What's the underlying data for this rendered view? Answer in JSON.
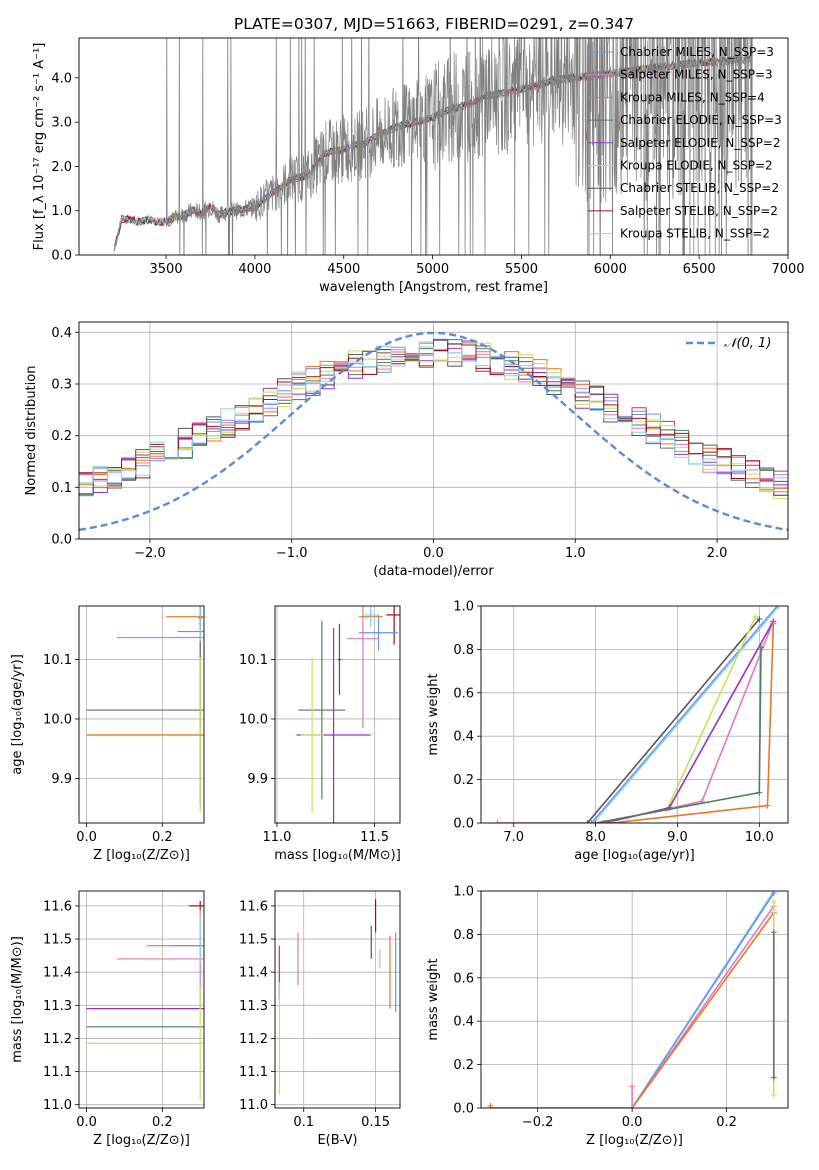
{
  "figure": {
    "title": "PLATE=0307, MJD=51663, FIBERID=0291, z=0.347"
  },
  "colors": {
    "chabrier_miles": "#6495ed",
    "salpeter_miles": "#e377c2",
    "kroupa_miles": "#e8762b",
    "chabrier_elodie": "#4a7f5e",
    "salpeter_elodie": "#9b30c9",
    "kroupa_elodie": "#c8e05a",
    "chabrier_stelib": "#555555",
    "salpeter_stelib": "#a01010",
    "kroupa_stelib": "#90d0e8",
    "data": "#808080",
    "gaussian": "#5b8bd6"
  },
  "chart_data": [
    {
      "id": "spectrum",
      "type": "line",
      "xlabel": "wavelength [Angstrom, rest frame]",
      "ylabel": "Flux [f_λ 10⁻¹⁷ erg cm⁻² s⁻¹ A⁻¹]",
      "xlim": [
        3010,
        7000
      ],
      "ylim": [
        0,
        4.9
      ],
      "xticks": [
        3500,
        4000,
        4500,
        5000,
        5500,
        6000,
        6500,
        7000
      ],
      "yticks": [
        0,
        1,
        2,
        3,
        4
      ],
      "grid": false,
      "legend_position": "right",
      "data_series": {
        "name": "",
        "x": [
          3200,
          3250,
          3300,
          3350,
          3400,
          3450,
          3500,
          3550,
          3600,
          3650,
          3700,
          3750,
          3800,
          3850,
          3900,
          3950,
          4000,
          4100,
          4200,
          4300,
          4400,
          4500,
          4600,
          4700,
          4800,
          4900,
          5000,
          5100,
          5200,
          5300,
          5400,
          5500,
          5600,
          5700,
          5800,
          5900,
          6000,
          6100,
          6200,
          6300,
          6400,
          6500,
          6600,
          6700,
          6800
        ],
        "y": [
          0.0,
          0.8,
          0.8,
          0.75,
          0.8,
          0.75,
          0.75,
          0.85,
          0.9,
          1.0,
          0.95,
          1.1,
          0.9,
          1.0,
          1.0,
          1.05,
          1.1,
          1.4,
          1.7,
          1.8,
          2.3,
          2.4,
          2.5,
          2.7,
          2.9,
          3.0,
          3.1,
          3.3,
          3.4,
          3.6,
          3.65,
          3.75,
          3.85,
          3.95,
          4.0,
          4.05,
          4.1,
          4.15,
          4.2,
          4.25,
          4.3,
          4.35,
          4.35,
          4.4,
          4.4
        ]
      },
      "series": [
        {
          "name": "Chabrier MILES, N_SSP=3",
          "key": "chabrier_miles"
        },
        {
          "name": "Salpeter MILES, N_SSP=3",
          "key": "salpeter_miles"
        },
        {
          "name": "Kroupa MILES, N_SSP=4",
          "key": "kroupa_miles"
        },
        {
          "name": "Chabrier ELODIE, N_SSP=3",
          "key": "chabrier_elodie"
        },
        {
          "name": "Salpeter ELODIE, N_SSP=2",
          "key": "salpeter_elodie"
        },
        {
          "name": "Kroupa ELODIE, N_SSP=2",
          "key": "kroupa_elodie"
        },
        {
          "name": "Chabrier STELIB, N_SSP=2",
          "key": "chabrier_stelib"
        },
        {
          "name": "Salpeter STELIB, N_SSP=2",
          "key": "salpeter_stelib"
        },
        {
          "name": "Kroupa STELIB, N_SSP=2",
          "key": "kroupa_stelib"
        }
      ]
    },
    {
      "id": "residuals",
      "type": "histogram",
      "xlabel": "(data-model)/error",
      "ylabel": "Normed distribution",
      "xlim": [
        -2.5,
        2.5
      ],
      "ylim": [
        0,
        0.42
      ],
      "xticks": [
        -2,
        -1,
        0,
        1,
        2
      ],
      "yticks": [
        0.0,
        0.1,
        0.2,
        0.3,
        0.4
      ],
      "grid": true,
      "legend_position": "top-right",
      "legend_label": "𝒩(0, 1)",
      "bin_width": 0.1
    },
    {
      "id": "z_age",
      "type": "errorbar",
      "xlabel": "Z [log₁₀(Z/Z⊙)]",
      "ylabel": "age  [log₁₀(age/yr)]",
      "xlim": [
        -0.02,
        0.31
      ],
      "ylim": [
        9.825,
        10.19
      ],
      "xticks": [
        0.0,
        0.2
      ],
      "yticks": [
        9.9,
        10.0,
        10.1
      ],
      "grid": true,
      "points": [
        {
          "key": "kroupa_miles",
          "x": 0.3,
          "y": 10.172,
          "xerr": 0.09,
          "yerr": 0.01
        },
        {
          "key": "chabrier_miles",
          "x": 0.3,
          "y": 10.147,
          "xerr": 0.06,
          "yerr": 0.02
        },
        {
          "key": "salpeter_miles",
          "x": 0.3,
          "y": 10.137,
          "xerr": 0.22,
          "yerr": 0.15
        },
        {
          "key": "chabrier_elodie",
          "x": 0.3,
          "y": 10.015,
          "xerr": 0.3,
          "yerr": 0.16
        },
        {
          "key": "kroupa_elodie",
          "x": 0.3,
          "y": 9.973,
          "xerr": 0.3,
          "yerr": 0.13
        },
        {
          "key": "kroupa_miles",
          "x": 0.3,
          "y": 9.973,
          "xerr": 0.3,
          "yerr": 0.0
        },
        {
          "key": "chabrier_stelib",
          "x": 0.3,
          "y": 10.17,
          "xerr": 0.005,
          "yerr": 0.02
        },
        {
          "key": "kroupa_stelib",
          "x": 0.3,
          "y": 10.16,
          "xerr": 0.005,
          "yerr": 0.03
        }
      ]
    },
    {
      "id": "mass_age",
      "type": "errorbar",
      "xlabel": "mass [log₁₀(M/M⊙)]",
      "ylabel": "",
      "xlim": [
        10.99,
        11.63
      ],
      "ylim": [
        9.825,
        10.19
      ],
      "xticks": [
        11.0,
        11.5
      ],
      "yticks": [
        9.9,
        10.0,
        10.1
      ],
      "grid": true,
      "points": [
        {
          "key": "salpeter_stelib",
          "x": 11.6,
          "y": 10.175,
          "xerr": 0.04,
          "yerr": 0.05
        },
        {
          "key": "chabrier_miles",
          "x": 11.52,
          "y": 10.145,
          "xerr": 0.1,
          "yerr": 0.03
        },
        {
          "key": "salpeter_miles",
          "x": 11.44,
          "y": 10.135,
          "xerr": 0.08,
          "yerr": 0.15
        },
        {
          "key": "chabrier_elodie",
          "x": 11.23,
          "y": 10.015,
          "xerr": 0.12,
          "yerr": 0.15
        },
        {
          "key": "salpeter_elodie",
          "x": 11.29,
          "y": 9.973,
          "xerr": 0.19,
          "yerr": 0.18
        },
        {
          "key": "kroupa_elodie",
          "x": 11.18,
          "y": 9.973,
          "xerr": 0.06,
          "yerr": 0.13
        },
        {
          "key": "kroupa_miles",
          "x": 11.48,
          "y": 10.172,
          "xerr": 0.06,
          "yerr": 0.01
        },
        {
          "key": "chabrier_stelib",
          "x": 11.32,
          "y": 10.1,
          "xerr": 0.01,
          "yerr": 0.06
        },
        {
          "key": "kroupa_stelib",
          "x": 11.48,
          "y": 10.175,
          "xerr": 0.04,
          "yerr": 0.02
        }
      ]
    },
    {
      "id": "age_weight",
      "type": "line",
      "xlabel": "age  [log₁₀(age/yr)]",
      "ylabel": "mass weight",
      "xlim": [
        6.6,
        10.35
      ],
      "ylim": [
        0,
        1.0
      ],
      "xticks": [
        7,
        8,
        9,
        10
      ],
      "yticks": [
        0.0,
        0.2,
        0.4,
        0.6,
        0.8,
        1.0
      ],
      "grid": true,
      "series": [
        {
          "key": "chabrier_miles",
          "x": [
            7.95,
            10.22
          ],
          "y": [
            0.0,
            1.0
          ]
        },
        {
          "key": "kroupa_stelib",
          "x": [
            7.97,
            10.24
          ],
          "y": [
            0.0,
            1.0
          ]
        },
        {
          "key": "chabrier_stelib",
          "x": [
            7.9,
            10.0
          ],
          "y": [
            0.0,
            0.94
          ]
        },
        {
          "key": "kroupa_elodie",
          "x": [
            8.87,
            9.95
          ],
          "y": [
            0.06,
            0.95
          ]
        },
        {
          "key": "salpeter_miles",
          "x": [
            8.1,
            9.3,
            10.17
          ],
          "y": [
            0.0,
            0.1,
            0.93
          ]
        },
        {
          "key": "salpeter_elodie",
          "x": [
            8.1,
            8.9,
            10.17
          ],
          "y": [
            0.0,
            0.07,
            0.93
          ]
        },
        {
          "key": "chabrier_elodie",
          "x": [
            8.0,
            10.0,
            10.02
          ],
          "y": [
            0.0,
            0.14,
            0.81
          ]
        },
        {
          "key": "kroupa_miles",
          "x": [
            6.8,
            8.2,
            10.1,
            10.17
          ],
          "y": [
            0.0,
            0.0,
            0.08,
            0.92
          ]
        }
      ]
    },
    {
      "id": "z_mass",
      "type": "errorbar",
      "xlabel": "Z [log₁₀(Z/Z⊙)]",
      "ylabel": "mass [log₁₀(M/M⊙)]",
      "xlim": [
        -0.02,
        0.31
      ],
      "ylim": [
        10.99,
        11.645
      ],
      "xticks": [
        0.0,
        0.2
      ],
      "yticks": [
        11.0,
        11.1,
        11.2,
        11.3,
        11.4,
        11.5,
        11.6
      ],
      "grid": true,
      "points": [
        {
          "key": "salpeter_stelib",
          "x": 0.3,
          "y": 11.6,
          "xerr": 0.03,
          "yerr": 0.015
        },
        {
          "key": "kroupa_miles",
          "x": 0.3,
          "y": 11.48,
          "xerr": 0.14,
          "yerr": 0.0
        },
        {
          "key": "chabrier_miles",
          "x": 0.3,
          "y": 11.48,
          "xerr": 0.08,
          "yerr": 0.03
        },
        {
          "key": "salpeter_miles",
          "x": 0.3,
          "y": 11.44,
          "xerr": 0.22,
          "yerr": 0.15
        },
        {
          "key": "salpeter_elodie",
          "x": 0.3,
          "y": 11.29,
          "xerr": 0.3,
          "yerr": 0.0
        },
        {
          "key": "chabrier_elodie",
          "x": 0.3,
          "y": 11.235,
          "xerr": 0.3,
          "yerr": 0.0
        },
        {
          "key": "kroupa_elodie",
          "x": 0.3,
          "y": 11.185,
          "xerr": 0.3,
          "yerr": 0.17
        },
        {
          "key": "kroupa_stelib",
          "x": 0.3,
          "y": 11.5,
          "xerr": 0.005,
          "yerr": 0.07
        }
      ]
    },
    {
      "id": "ebv_mass",
      "type": "errorbar",
      "xlabel": "E(B-V)",
      "ylabel": "",
      "xlim": [
        0.08,
        0.167
      ],
      "ylim": [
        10.99,
        11.645
      ],
      "xticks": [
        0.1,
        0.15
      ],
      "yticks": [
        11.0,
        11.1,
        11.2,
        11.3,
        11.4,
        11.5,
        11.6
      ],
      "grid": true,
      "points": [
        {
          "key": "salpeter_elodie",
          "x": 0.083,
          "y": 11.4,
          "yerr": 0.08
        },
        {
          "key": "kroupa_elodie",
          "x": 0.083,
          "y": 11.2,
          "yerr": 0.17
        },
        {
          "key": "salpeter_miles",
          "x": 0.096,
          "y": 11.44,
          "yerr": 0.08
        },
        {
          "key": "chabrier_stelib",
          "x": 0.147,
          "y": 11.49,
          "yerr": 0.05
        },
        {
          "key": "salpeter_stelib",
          "x": 0.15,
          "y": 11.57,
          "yerr": 0.05
        },
        {
          "key": "kroupa_stelib",
          "x": 0.153,
          "y": 11.44,
          "yerr": 0.03
        },
        {
          "key": "kroupa_miles",
          "x": 0.16,
          "y": 11.4,
          "yerr": 0.11
        },
        {
          "key": "chabrier_miles",
          "x": 0.164,
          "y": 11.4,
          "yerr": 0.12
        }
      ]
    },
    {
      "id": "z_weight",
      "type": "line",
      "xlabel": "Z [log₁₀(Z/Z⊙)]",
      "ylabel": "mass weight",
      "xlim": [
        -0.32,
        0.33
      ],
      "ylim": [
        0,
        1.0
      ],
      "xticks": [
        -0.2,
        0.0,
        0.2
      ],
      "yticks": [
        0.0,
        0.2,
        0.4,
        0.6,
        0.8,
        1.0
      ],
      "grid": true,
      "series": [
        {
          "key": "kroupa_stelib",
          "x": [
            0.0,
            0.3
          ],
          "y": [
            0.0,
            1.0
          ]
        },
        {
          "key": "chabrier_miles",
          "x": [
            0.0,
            0.3
          ],
          "y": [
            0.0,
            0.99
          ]
        },
        {
          "key": "salpeter_miles",
          "x": [
            0.0,
            0.3
          ],
          "y": [
            0.0,
            0.93
          ]
        },
        {
          "key": "kroupa_miles",
          "x": [
            -0.3,
            0.0,
            0.3
          ],
          "y": [
            0.0,
            0.0,
            0.9
          ]
        },
        {
          "key": "kroupa_elodie",
          "x": [
            0.3,
            0.3
          ],
          "y": [
            0.06,
            0.95
          ]
        },
        {
          "key": "chabrier_elodie",
          "x": [
            0.3,
            0.3
          ],
          "y": [
            0.14,
            0.81
          ]
        },
        {
          "key": "salpeter_miles",
          "x": [
            -0.0,
            -0.0
          ],
          "y": [
            0.0,
            0.1
          ]
        },
        {
          "key": "kroupa_miles",
          "x": [
            -0.3,
            -0.3
          ],
          "y": [
            0.0,
            0.01
          ]
        }
      ]
    }
  ]
}
